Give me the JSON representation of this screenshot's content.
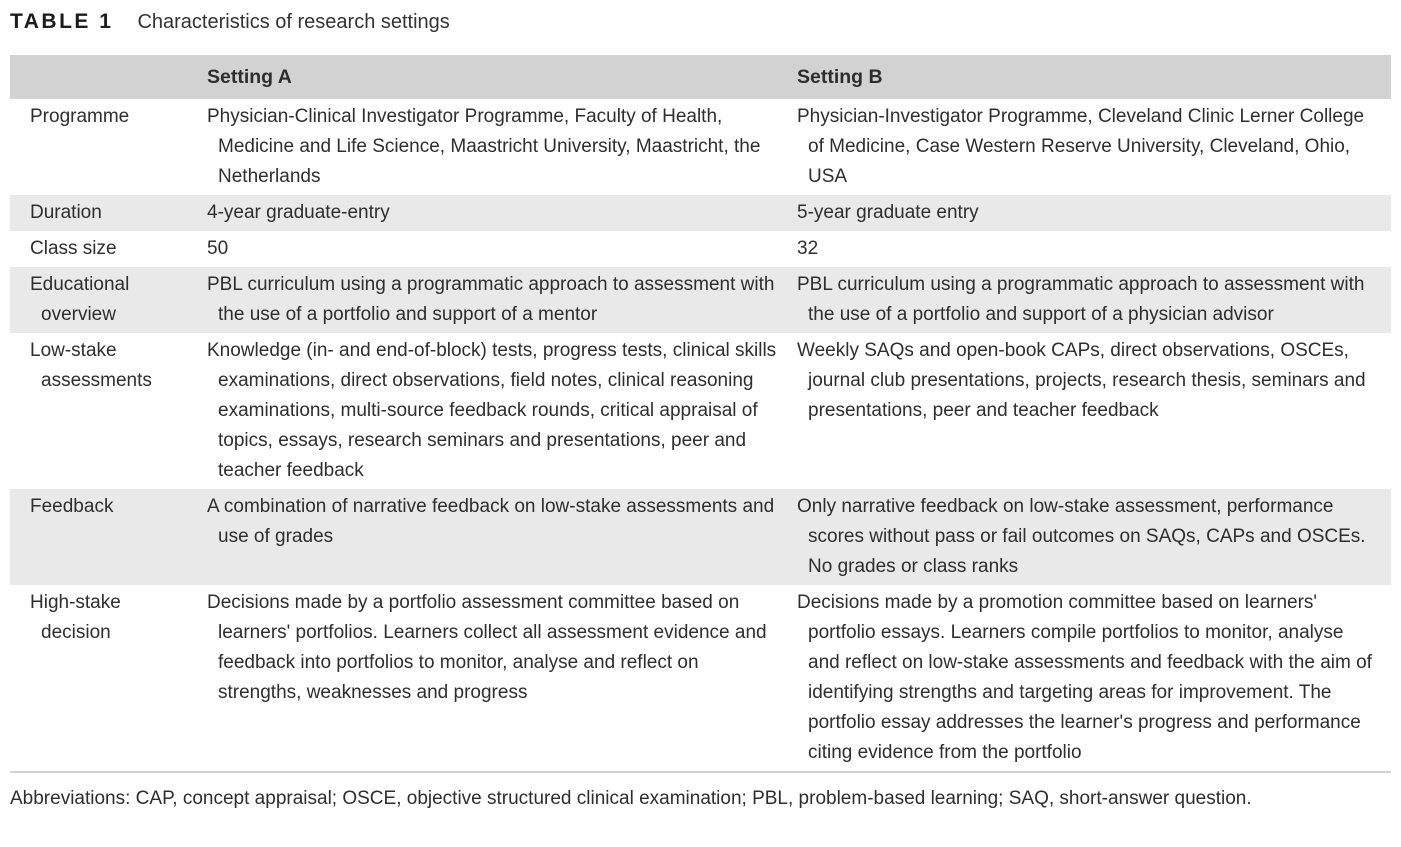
{
  "table": {
    "label": "TABLE 1",
    "caption": "Characteristics of research settings",
    "columns": [
      "",
      "Setting A",
      "Setting B"
    ],
    "rows": [
      {
        "label": "Programme",
        "setting_a": "Physician-Clinical Investigator Programme, Faculty of Health, Medicine and Life Science, Maastricht University, Maastricht, the Netherlands",
        "setting_b": "Physician-Investigator Programme, Cleveland Clinic Lerner College of Medicine, Case Western Reserve University, Cleveland, Ohio, USA"
      },
      {
        "label": "Duration",
        "setting_a": "4-year graduate-entry",
        "setting_b": "5-year graduate entry"
      },
      {
        "label": "Class size",
        "setting_a": "50",
        "setting_b": "32"
      },
      {
        "label": "Educational overview",
        "setting_a": "PBL curriculum using a programmatic approach to assessment with the use of a portfolio and support of a mentor",
        "setting_b": "PBL curriculum using a programmatic approach to assessment with the use of a portfolio and support of a physician advisor"
      },
      {
        "label": "Low-stake assessments",
        "setting_a": "Knowledge (in- and end-of-block) tests, progress tests, clinical skills examinations, direct observations, field notes, clinical reasoning examinations, multi-source feedback rounds, critical appraisal of topics, essays, research seminars and presentations, peer and teacher feedback",
        "setting_b": "Weekly SAQs and open-book CAPs, direct observations, OSCEs, journal club presentations, projects, research thesis, seminars and presentations, peer and teacher feedback"
      },
      {
        "label": "Feedback",
        "setting_a": "A combination of narrative feedback on low-stake assessments and use of grades",
        "setting_b": "Only narrative feedback on low-stake assessment, performance scores without pass or fail outcomes on SAQs, CAPs and OSCEs. No grades or class ranks"
      },
      {
        "label": "High-stake decision",
        "setting_a": "Decisions made by a portfolio assessment committee based on learners' portfolios. Learners collect all assessment evidence and feedback into portfolios to monitor, analyse and reflect on strengths, weaknesses and progress",
        "setting_b": "Decisions made by a promotion committee based on learners' portfolio essays. Learners compile portfolios to monitor, analyse and reflect on low-stake assessments and feedback with the aim of identifying strengths and targeting areas for improvement. The portfolio essay addresses the learner's progress and performance citing evidence from the portfolio"
      }
    ],
    "footnote": "Abbreviations: CAP, concept appraisal; OSCE, objective structured clinical examination; PBL, problem-based learning; SAQ, short-answer question."
  },
  "colors": {
    "header_band": "#d2d2d2",
    "row_stripe": "#e9e9e9",
    "body_text": "#2e2e2e",
    "title_text": "#1c1c1c"
  }
}
